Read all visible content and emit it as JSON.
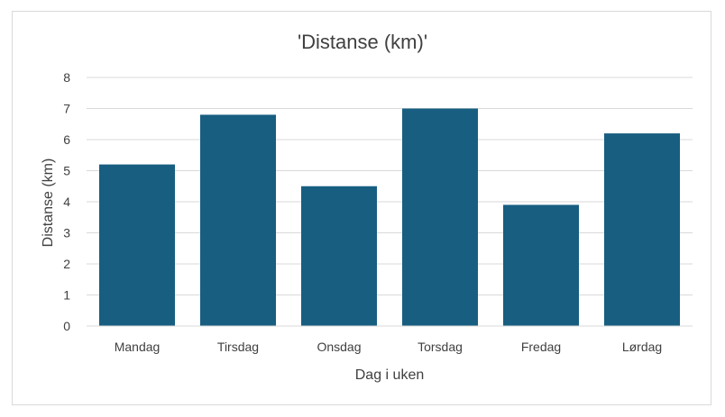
{
  "chart_data": {
    "type": "bar",
    "title": "'Distanse (km)'",
    "xlabel": "Dag i uken",
    "ylabel": "Distanse (km)",
    "categories": [
      "Mandag",
      "Tirsdag",
      "Onsdag",
      "Torsdag",
      "Fredag",
      "Lørdag"
    ],
    "series": [
      {
        "values": [
          5.2,
          6.8,
          4.5,
          7.0,
          3.9,
          6.2
        ]
      }
    ],
    "ylim": [
      0,
      8
    ],
    "yticks": [
      0,
      1,
      2,
      3,
      4,
      5,
      6,
      7,
      8
    ],
    "grid": true,
    "legend": "none",
    "bar_color": "#175e81",
    "grid_color": "#d9d9d9",
    "text_color": "#404040"
  }
}
